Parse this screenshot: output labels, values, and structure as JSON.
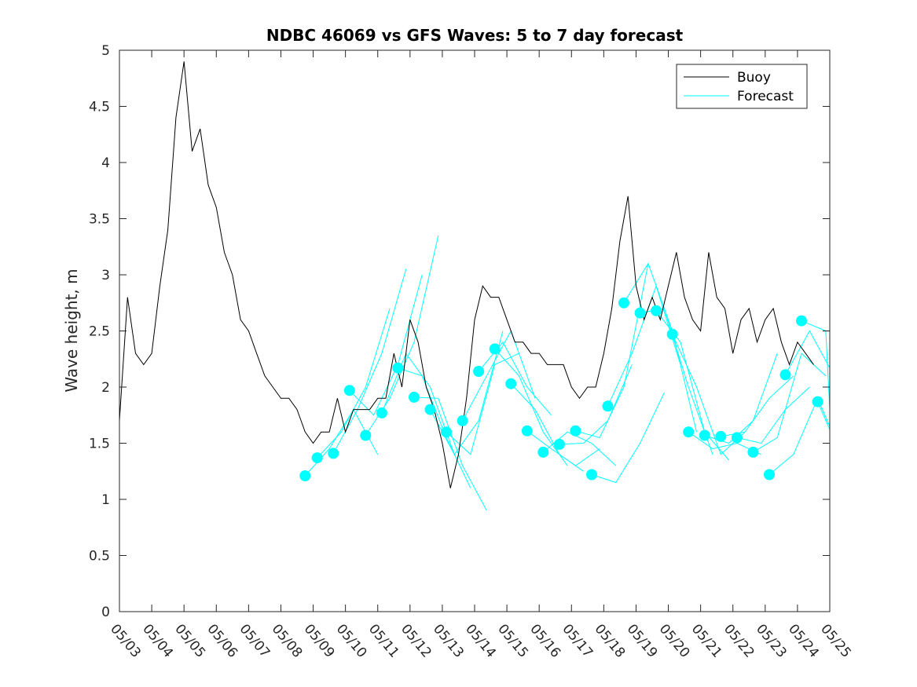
{
  "chart_data": {
    "type": "line",
    "title": "NDBC 46069 vs GFS Waves: 5 to 7 day forecast",
    "xlabel": "",
    "ylabel": "Wave height, m",
    "xlim": [
      "05/03",
      "05/25"
    ],
    "ylim": [
      0,
      5
    ],
    "x_tick_labels": [
      "05/03",
      "05/04",
      "05/05",
      "05/06",
      "05/07",
      "05/08",
      "05/09",
      "05/10",
      "05/11",
      "05/12",
      "05/13",
      "05/14",
      "05/15",
      "05/16",
      "05/17",
      "05/18",
      "05/19",
      "05/20",
      "05/21",
      "05/22",
      "05/23",
      "05/24",
      "05/25"
    ],
    "y_ticks": [
      0,
      0.5,
      1,
      1.5,
      2,
      2.5,
      3,
      3.5,
      4,
      4.5,
      5
    ],
    "y_tick_labels": [
      "0",
      "0.5",
      "1",
      "1.5",
      "2",
      "2.5",
      "3",
      "3.5",
      "4",
      "4.5",
      "5"
    ],
    "grid": false,
    "legend": {
      "placement": "top-right",
      "entries": [
        "Buoy",
        "Forecast"
      ]
    },
    "colors": {
      "buoy": "#000000",
      "forecast": "#00ffff",
      "markers": "#00ffff",
      "axes": "#262626"
    },
    "series": [
      {
        "name": "Buoy",
        "x": [
          "05/03 00:00",
          "05/03 06:00",
          "05/03 12:00",
          "05/03 18:00",
          "05/04 00:00",
          "05/04 06:00",
          "05/04 12:00",
          "05/04 18:00",
          "05/05 00:00",
          "05/05 06:00",
          "05/05 12:00",
          "05/05 18:00",
          "05/06 00:00",
          "05/06 06:00",
          "05/06 12:00",
          "05/06 18:00",
          "05/07 00:00",
          "05/07 06:00",
          "05/07 12:00",
          "05/07 18:00",
          "05/08 00:00",
          "05/08 06:00",
          "05/08 12:00",
          "05/08 18:00",
          "05/09 00:00",
          "05/09 06:00",
          "05/09 12:00",
          "05/09 18:00",
          "05/10 00:00",
          "05/10 06:00",
          "05/10 12:00",
          "05/10 18:00",
          "05/11 00:00",
          "05/11 06:00",
          "05/11 12:00",
          "05/11 18:00",
          "05/12 00:00",
          "05/12 06:00",
          "05/12 12:00",
          "05/12 18:00",
          "05/13 00:00",
          "05/13 06:00",
          "05/13 12:00",
          "05/13 18:00",
          "05/14 00:00",
          "05/14 06:00",
          "05/14 12:00",
          "05/14 18:00",
          "05/15 00:00",
          "05/15 06:00",
          "05/15 12:00",
          "05/15 18:00",
          "05/16 00:00",
          "05/16 06:00",
          "05/16 12:00",
          "05/16 18:00",
          "05/17 00:00",
          "05/17 06:00",
          "05/17 12:00",
          "05/17 18:00",
          "05/18 00:00",
          "05/18 06:00",
          "05/18 12:00",
          "05/18 18:00",
          "05/19 00:00",
          "05/19 06:00",
          "05/19 12:00",
          "05/19 18:00",
          "05/20 00:00",
          "05/20 06:00",
          "05/20 12:00",
          "05/20 18:00",
          "05/21 00:00",
          "05/21 06:00",
          "05/21 12:00",
          "05/21 18:00",
          "05/22 00:00",
          "05/22 06:00",
          "05/22 12:00",
          "05/22 18:00",
          "05/23 00:00",
          "05/23 06:00",
          "05/23 12:00",
          "05/23 18:00",
          "05/24 00:00",
          "05/24 06:00",
          "05/24 12:00"
        ],
        "y": [
          1.7,
          2.8,
          2.3,
          2.2,
          2.3,
          2.9,
          3.4,
          4.4,
          4.9,
          4.1,
          4.3,
          3.8,
          3.6,
          3.2,
          3.0,
          2.6,
          2.5,
          2.3,
          2.1,
          2.0,
          1.9,
          1.9,
          1.8,
          1.6,
          1.5,
          1.6,
          1.6,
          1.9,
          1.6,
          1.8,
          1.8,
          1.8,
          1.9,
          1.9,
          2.3,
          2.0,
          2.6,
          2.4,
          2.0,
          1.8,
          1.5,
          1.1,
          1.4,
          1.9,
          2.6,
          2.9,
          2.8,
          2.8,
          2.6,
          2.4,
          2.4,
          2.3,
          2.3,
          2.2,
          2.2,
          2.2,
          2.0,
          1.9,
          2.0,
          2.0,
          2.3,
          2.7,
          3.3,
          3.7,
          2.9,
          2.6,
          2.8,
          2.6,
          2.9,
          3.2,
          2.8,
          2.6,
          2.5,
          3.2,
          2.8,
          2.7,
          2.3,
          2.6,
          2.7,
          2.4,
          2.6,
          2.7,
          2.4,
          2.2,
          2.4,
          2.3,
          2.2
        ]
      },
      {
        "name": "Forecast",
        "segments": [
          {
            "x": [
              "05/08 18:00",
              "05/09 12:00",
              "05/10 06:00",
              "05/11 00:00"
            ],
            "y": [
              1.21,
              1.45,
              1.8,
              1.4
            ]
          },
          {
            "x": [
              "05/09 03:00",
              "05/09 21:00",
              "05/10 15:00",
              "05/11 09:00"
            ],
            "y": [
              1.37,
              1.6,
              2.0,
              2.7
            ]
          },
          {
            "x": [
              "05/09 15:00",
              "05/10 09:00",
              "05/11 03:00",
              "05/11 21:00"
            ],
            "y": [
              1.41,
              1.8,
              2.3,
              3.05
            ]
          },
          {
            "x": [
              "05/10 03:00",
              "05/10 21:00",
              "05/11 15:00",
              "05/12 09:00"
            ],
            "y": [
              1.97,
              1.75,
              2.2,
              3.0
            ]
          },
          {
            "x": [
              "05/10 15:00",
              "05/11 09:00",
              "05/12 03:00",
              "05/12 21:00"
            ],
            "y": [
              1.57,
              1.9,
              2.4,
              3.35
            ]
          },
          {
            "x": [
              "05/11 03:00",
              "05/11 21:00",
              "05/12 15:00",
              "05/13 09:00"
            ],
            "y": [
              1.77,
              2.3,
              2.0,
              1.4
            ]
          },
          {
            "x": [
              "05/11 15:00",
              "05/12 09:00",
              "05/13 03:00",
              "05/13 21:00"
            ],
            "y": [
              2.17,
              2.1,
              1.55,
              1.1
            ]
          },
          {
            "x": [
              "05/12 03:00",
              "05/12 21:00",
              "05/13 15:00",
              "05/14 09:00"
            ],
            "y": [
              1.91,
              1.9,
              1.3,
              0.9
            ]
          },
          {
            "x": [
              "05/12 15:00",
              "05/13 09:00",
              "05/14 03:00",
              "05/14 21:00"
            ],
            "y": [
              1.8,
              1.4,
              1.7,
              2.5
            ]
          },
          {
            "x": [
              "05/13 03:00",
              "05/13 21:00",
              "05/14 15:00",
              "05/15 09:00"
            ],
            "y": [
              1.6,
              1.4,
              2.2,
              2.3
            ]
          },
          {
            "x": [
              "05/13 15:00",
              "05/14 09:00",
              "05/15 03:00",
              "05/15 21:00"
            ],
            "y": [
              1.7,
              2.1,
              2.5,
              1.9
            ]
          },
          {
            "x": [
              "05/14 03:00",
              "05/14 21:00",
              "05/15 15:00",
              "05/16 09:00"
            ],
            "y": [
              2.14,
              2.4,
              2.0,
              1.75
            ]
          },
          {
            "x": [
              "05/14 15:00",
              "05/15 09:00",
              "05/16 03:00",
              "05/16 21:00"
            ],
            "y": [
              2.34,
              2.1,
              1.6,
              1.3
            ]
          },
          {
            "x": [
              "05/15 03:00",
              "05/15 21:00",
              "05/16 15:00",
              "05/17 09:00"
            ],
            "y": [
              2.03,
              1.8,
              1.4,
              1.25
            ]
          },
          {
            "x": [
              "05/15 15:00",
              "05/16 09:00",
              "05/17 03:00",
              "05/17 21:00"
            ],
            "y": [
              1.61,
              1.45,
              1.3,
              1.45
            ]
          },
          {
            "x": [
              "05/16 03:00",
              "05/16 21:00",
              "05/17 15:00",
              "05/18 09:00"
            ],
            "y": [
              1.42,
              1.6,
              1.5,
              1.3
            ]
          },
          {
            "x": [
              "05/16 15:00",
              "05/17 09:00",
              "05/18 03:00",
              "05/18 21:00"
            ],
            "y": [
              1.49,
              1.5,
              1.7,
              2.2
            ]
          },
          {
            "x": [
              "05/17 03:00",
              "05/17 21:00",
              "05/18 15:00",
              "05/19 09:00"
            ],
            "y": [
              1.61,
              1.55,
              2.0,
              3.1
            ]
          },
          {
            "x": [
              "05/17 15:00",
              "05/18 09:00",
              "05/19 03:00",
              "05/19 21:00"
            ],
            "y": [
              1.22,
              1.15,
              1.5,
              1.95
            ]
          },
          {
            "x": [
              "05/18 03:00",
              "05/18 21:00",
              "05/19 15:00",
              "05/20 09:00"
            ],
            "y": [
              1.83,
              2.3,
              2.9,
              2.2
            ]
          },
          {
            "x": [
              "05/18 15:00",
              "05/19 09:00",
              "05/20 03:00",
              "05/20 21:00"
            ],
            "y": [
              2.75,
              3.1,
              2.5,
              1.6
            ]
          },
          {
            "x": [
              "05/19 03:00",
              "05/19 21:00",
              "05/20 15:00",
              "05/21 09:00"
            ],
            "y": [
              2.66,
              2.7,
              2.0,
              1.4
            ]
          },
          {
            "x": [
              "05/19 15:00",
              "05/20 09:00",
              "05/21 03:00",
              "05/21 21:00"
            ],
            "y": [
              2.68,
              2.4,
              1.6,
              1.35
            ]
          },
          {
            "x": [
              "05/20 03:00",
              "05/20 21:00",
              "05/21 15:00",
              "05/22 09:00"
            ],
            "y": [
              2.47,
              2.0,
              1.4,
              1.6
            ]
          },
          {
            "x": [
              "05/20 15:00",
              "05/21 09:00",
              "05/22 03:00",
              "05/22 21:00"
            ],
            "y": [
              1.6,
              1.45,
              1.5,
              1.4
            ]
          },
          {
            "x": [
              "05/21 03:00",
              "05/21 21:00",
              "05/22 15:00",
              "05/23 09:00"
            ],
            "y": [
              1.57,
              1.5,
              1.7,
              2.3
            ]
          },
          {
            "x": [
              "05/21 15:00",
              "05/22 09:00",
              "05/23 03:00",
              "05/23 21:00"
            ],
            "y": [
              1.56,
              1.6,
              1.9,
              2.1
            ]
          },
          {
            "x": [
              "05/22 03:00",
              "05/22 21:00",
              "05/23 15:00",
              "05/24 09:00"
            ],
            "y": [
              1.55,
              1.5,
              1.8,
              2.0
            ]
          },
          {
            "x": [
              "05/22 15:00",
              "05/23 09:00",
              "05/24 03:00",
              "05/24 21:00"
            ],
            "y": [
              1.42,
              1.55,
              2.3,
              2.1
            ]
          },
          {
            "x": [
              "05/23 03:00",
              "05/23 21:00",
              "05/24 15:00",
              "05/25 00:00"
            ],
            "y": [
              1.22,
              1.4,
              1.9,
              1.65
            ]
          },
          {
            "x": [
              "05/23 15:00",
              "05/24 09:00",
              "05/25 00:00"
            ],
            "y": [
              2.11,
              2.5,
              2.17
            ]
          },
          {
            "x": [
              "05/24 03:00",
              "05/24 21:00",
              "05/25 00:00"
            ],
            "y": [
              2.59,
              2.5,
              1.8
            ]
          },
          {
            "x": [
              "05/24 15:00",
              "05/25 00:00"
            ],
            "y": [
              1.87,
              1.62
            ]
          }
        ]
      }
    ]
  }
}
